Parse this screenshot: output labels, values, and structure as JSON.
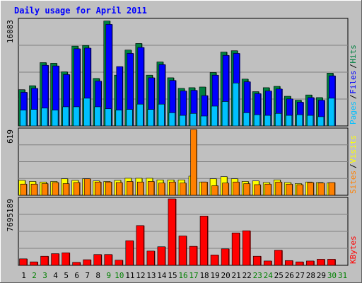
{
  "chart_data": {
    "type": "bar",
    "title": "Daily usage for April 2011",
    "days": [
      "1",
      "2",
      "3",
      "4",
      "5",
      "6",
      "7",
      "8",
      "9",
      "10",
      "11",
      "12",
      "13",
      "14",
      "15",
      "16",
      "17",
      "18",
      "19",
      "20",
      "21",
      "22",
      "23",
      "24",
      "25",
      "26",
      "27",
      "28",
      "29",
      "30",
      "31"
    ],
    "weekend_days": [
      "2",
      "3",
      "9",
      "10",
      "16",
      "17",
      "23",
      "24",
      "30",
      "31"
    ],
    "panels": [
      {
        "id": "top",
        "max_label": "16083",
        "ylim": [
          0,
          16083
        ],
        "legend": [
          "Pages",
          "Files",
          "Hits"
        ],
        "series": [
          {
            "name": "Hits",
            "color": "#008040",
            "values": [
              5500,
              6100,
              9600,
              9500,
              8200,
              12100,
              12200,
              7200,
              15900,
              7700,
              11500,
              12500,
              7700,
              9700,
              7300,
              5700,
              5800,
              5900,
              8100,
              11200,
              11400,
              7100,
              5200,
              5800,
              6000,
              4500,
              3900,
              4700,
              4300,
              8000
            ]
          },
          {
            "name": "Files",
            "color": "#0000ff",
            "values": [
              5100,
              5700,
              9200,
              9100,
              7800,
              11700,
              11800,
              6800,
              15400,
              9000,
              11000,
              11900,
              7300,
              9300,
              6900,
              5300,
              5400,
              4600,
              7700,
              10700,
              11000,
              6700,
              4900,
              5300,
              5600,
              4100,
              3600,
              4300,
              3900,
              7600
            ]
          },
          {
            "name": "Pages",
            "color": "#00c0ff",
            "values": [
              2400,
              2500,
              2700,
              2400,
              2900,
              2900,
              4200,
              2900,
              2600,
              2400,
              2500,
              3300,
              2500,
              3300,
              2000,
              1600,
              1900,
              1500,
              3000,
              3700,
              6500,
              2000,
              1700,
              1600,
              1900,
              1600,
              1700,
              1600,
              1400,
              4200
            ]
          }
        ]
      },
      {
        "id": "middle",
        "max_label": "619",
        "ylim": [
          0,
          619
        ],
        "legend": [
          "Sites",
          "Visits"
        ],
        "series": [
          {
            "name": "Visits",
            "color": "#ffff00",
            "values": [
              140,
              130,
              125,
              130,
              155,
              140,
              155,
              135,
              130,
              140,
              160,
              160,
              160,
              145,
              145,
              145,
              180,
              125,
              155,
              175,
              155,
              130,
              135,
              120,
              145,
              120,
              110,
              125,
              120,
              115
            ]
          },
          {
            "name": "Sites",
            "color": "#ff8000",
            "values": [
              105,
              105,
              110,
              120,
              110,
              120,
              155,
              125,
              125,
              120,
              130,
              125,
              130,
              115,
              125,
              115,
              619,
              125,
              90,
              115,
              125,
              110,
              100,
              105,
              125,
              105,
              100,
              120,
              115,
              120
            ]
          }
        ]
      },
      {
        "id": "bottom",
        "max_label": "7695189",
        "ylim": [
          0,
          7695189
        ],
        "legend": [
          "KBytes"
        ],
        "series": [
          {
            "name": "KBytes",
            "color": "#ff0000",
            "values": [
              750000,
              400000,
              1050000,
              1350000,
              1450000,
              350000,
              650000,
              1250000,
              1250000,
              600000,
              2850000,
              4600000,
              1650000,
              2150000,
              7695189,
              3400000,
              2200000,
              5700000,
              1200000,
              1900000,
              3750000,
              4000000,
              1050000,
              500000,
              1750000,
              550000,
              400000,
              500000,
              700000,
              700000
            ]
          }
        ]
      }
    ]
  },
  "colors": {
    "frame": "#c0c0c0",
    "title": "#0000ff",
    "plot_bg": "#c0c0c0",
    "grid": "#808080",
    "day_weekday": "#000000",
    "day_weekend": "#008000"
  }
}
